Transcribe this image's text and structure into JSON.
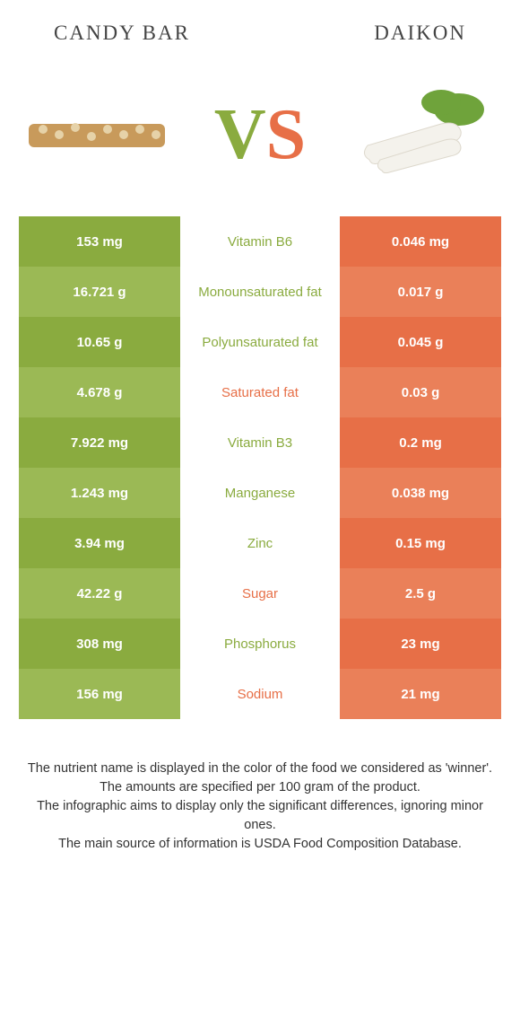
{
  "header": {
    "left_title": "CANDY BAR",
    "right_title": "DAIKON"
  },
  "vs": {
    "v": "V",
    "s": "S"
  },
  "colors": {
    "left_a": "#8aab3f",
    "left_b": "#9bb955",
    "right_a": "#e76f47",
    "right_b": "#ea8059",
    "mid_left": "#8aab3f",
    "mid_right": "#e76f47"
  },
  "table": {
    "rows": [
      {
        "left": "153 mg",
        "mid": "Vitamin B6",
        "right": "0.046 mg",
        "winner": "left"
      },
      {
        "left": "16.721 g",
        "mid": "Monounsaturated fat",
        "right": "0.017 g",
        "winner": "left"
      },
      {
        "left": "10.65 g",
        "mid": "Polyunsaturated fat",
        "right": "0.045 g",
        "winner": "left"
      },
      {
        "left": "4.678 g",
        "mid": "Saturated fat",
        "right": "0.03 g",
        "winner": "right"
      },
      {
        "left": "7.922 mg",
        "mid": "Vitamin B3",
        "right": "0.2 mg",
        "winner": "left"
      },
      {
        "left": "1.243 mg",
        "mid": "Manganese",
        "right": "0.038 mg",
        "winner": "left"
      },
      {
        "left": "3.94 mg",
        "mid": "Zinc",
        "right": "0.15 mg",
        "winner": "left"
      },
      {
        "left": "42.22 g",
        "mid": "Sugar",
        "right": "2.5 g",
        "winner": "right"
      },
      {
        "left": "308 mg",
        "mid": "Phosphorus",
        "right": "23 mg",
        "winner": "left"
      },
      {
        "left": "156 mg",
        "mid": "Sodium",
        "right": "21 mg",
        "winner": "right"
      }
    ]
  },
  "footer": {
    "line1": "The nutrient name is displayed in the color of the food we considered as 'winner'.",
    "line2": "The amounts are specified per 100 gram of the product.",
    "line3": "The infographic aims to display only the significant differences, ignoring minor ones.",
    "line4": "The main source of information is USDA Food Composition Database."
  }
}
